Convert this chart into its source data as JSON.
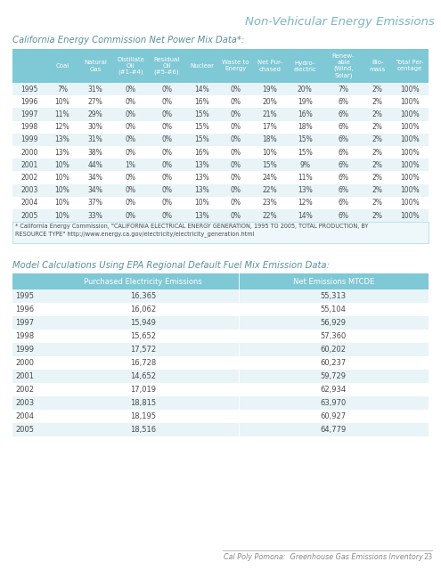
{
  "title": "Non-Vehicular Energy Emissions",
  "section1_label": "California Energy Commission Net Power Mix Data*:",
  "section2_label": "Model Calculations Using EPA Regional Default Fuel Mix Emission Data:",
  "footer_text": "Cal Poly Pomona:  Greenhouse Gas Emissions Inventory",
  "footer_page": "23",
  "table1_headers": [
    "Coal",
    "Natural\nGas",
    "Distillate\nOil\n(#1-#4)",
    "Residual\nOil\n(#5-#6)",
    "Nuclear",
    "Waste to\nEnergy",
    "Net Pur-\nchased",
    "Hydro-\nelectric",
    "Renew-\nable\n(Wind,\nSolar)",
    "Bio-\nmass",
    "Total Per-\ncentage"
  ],
  "table1_years": [
    1995,
    1996,
    1997,
    1998,
    1999,
    2000,
    2001,
    2002,
    2003,
    2004,
    2005
  ],
  "table1_data": [
    [
      "7%",
      "31%",
      "0%",
      "0%",
      "14%",
      "0%",
      "19%",
      "20%",
      "7%",
      "2%",
      "100%"
    ],
    [
      "10%",
      "27%",
      "0%",
      "0%",
      "16%",
      "0%",
      "20%",
      "19%",
      "6%",
      "2%",
      "100%"
    ],
    [
      "11%",
      "29%",
      "0%",
      "0%",
      "15%",
      "0%",
      "21%",
      "16%",
      "6%",
      "2%",
      "100%"
    ],
    [
      "12%",
      "30%",
      "0%",
      "0%",
      "15%",
      "0%",
      "17%",
      "18%",
      "6%",
      "2%",
      "100%"
    ],
    [
      "13%",
      "31%",
      "0%",
      "0%",
      "15%",
      "0%",
      "18%",
      "15%",
      "6%",
      "2%",
      "100%"
    ],
    [
      "13%",
      "38%",
      "0%",
      "0%",
      "16%",
      "0%",
      "10%",
      "15%",
      "6%",
      "2%",
      "100%"
    ],
    [
      "10%",
      "44%",
      "1%",
      "0%",
      "13%",
      "0%",
      "15%",
      "9%",
      "6%",
      "2%",
      "100%"
    ],
    [
      "10%",
      "34%",
      "0%",
      "0%",
      "13%",
      "0%",
      "24%",
      "11%",
      "6%",
      "2%",
      "100%"
    ],
    [
      "10%",
      "34%",
      "0%",
      "0%",
      "13%",
      "0%",
      "22%",
      "13%",
      "6%",
      "2%",
      "100%"
    ],
    [
      "10%",
      "37%",
      "0%",
      "0%",
      "10%",
      "0%",
      "23%",
      "12%",
      "6%",
      "2%",
      "100%"
    ],
    [
      "10%",
      "33%",
      "0%",
      "0%",
      "13%",
      "0%",
      "22%",
      "14%",
      "6%",
      "2%",
      "100%"
    ]
  ],
  "table1_footnote": "* California Energy Commission, \"CALIFORNIA ELECTRICAL ENERGY GENERATION, 1995 TO 2005, TOTAL PRODUCTION, BY\nRESOURCE TYPE\" http://www.energy.ca.gov/electricity/electricity_generation.html",
  "table2_headers": [
    "Purchased Electricity Emissions",
    "Net Emissions MTCDE"
  ],
  "table2_years": [
    1995,
    1996,
    1997,
    1998,
    1999,
    2000,
    2001,
    2002,
    2003,
    2004,
    2005
  ],
  "table2_data": [
    [
      "16,365",
      "55,313"
    ],
    [
      "16,062",
      "55,104"
    ],
    [
      "15,949",
      "56,929"
    ],
    [
      "15,652",
      "57,360"
    ],
    [
      "17,572",
      "60,202"
    ],
    [
      "16,728",
      "60,237"
    ],
    [
      "14,652",
      "59,729"
    ],
    [
      "17,019",
      "62,934"
    ],
    [
      "18,815",
      "63,970"
    ],
    [
      "18,195",
      "60,927"
    ],
    [
      "18,516",
      "64,779"
    ]
  ],
  "header_bg": "#7fc8d6",
  "row_bg_even": "#e8f4f8",
  "row_bg_odd": "#ffffff",
  "text_color": "#4a4a4a",
  "title_color": "#7ab5c5",
  "section_label_color": "#5a8fa0",
  "bg_color": "#ffffff"
}
